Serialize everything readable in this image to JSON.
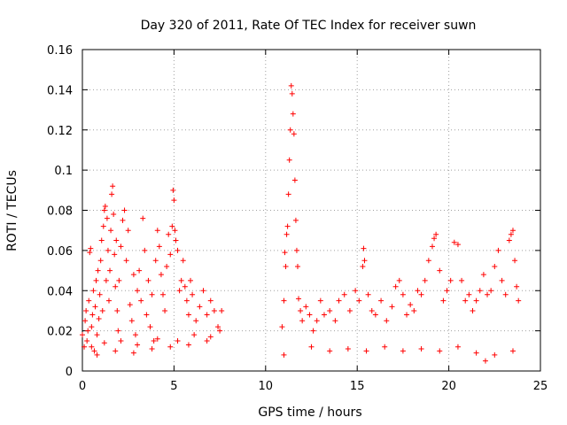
{
  "chart_data": {
    "type": "scatter",
    "title": "Day 320 of 2011, Rate Of TEC Index for receiver suwn",
    "xlabel": "GPS time / hours",
    "ylabel": "ROTI / TECUs",
    "xlim": [
      0,
      25
    ],
    "ylim": [
      0,
      0.16
    ],
    "xticks": [
      "0",
      "5",
      "10",
      "15",
      "20",
      "25"
    ],
    "yticks": [
      "0",
      "0.02",
      "0.04",
      "0.06",
      "0.08",
      "0.1",
      "0.12",
      "0.14",
      "0.16"
    ],
    "grid": true,
    "marker": "+",
    "color": "#ff0000",
    "series": [
      {
        "points": [
          [
            0.0,
            0.018
          ],
          [
            0.1,
            0.012
          ],
          [
            0.15,
            0.025
          ],
          [
            0.2,
            0.03
          ],
          [
            0.25,
            0.015
          ],
          [
            0.3,
            0.02
          ],
          [
            0.35,
            0.035
          ],
          [
            0.4,
            0.059
          ],
          [
            0.45,
            0.061
          ],
          [
            0.5,
            0.022
          ],
          [
            0.55,
            0.028
          ],
          [
            0.6,
            0.04
          ],
          [
            0.65,
            0.01
          ],
          [
            0.7,
            0.032
          ],
          [
            0.75,
            0.045
          ],
          [
            0.8,
            0.018
          ],
          [
            0.85,
            0.05
          ],
          [
            0.9,
            0.026
          ],
          [
            0.95,
            0.038
          ],
          [
            1.0,
            0.055
          ],
          [
            1.05,
            0.065
          ],
          [
            1.1,
            0.03
          ],
          [
            1.15,
            0.072
          ],
          [
            1.2,
            0.08
          ],
          [
            1.25,
            0.082
          ],
          [
            1.3,
            0.045
          ],
          [
            1.35,
            0.076
          ],
          [
            1.4,
            0.06
          ],
          [
            1.45,
            0.035
          ],
          [
            1.5,
            0.05
          ],
          [
            1.55,
            0.07
          ],
          [
            1.6,
            0.088
          ],
          [
            1.65,
            0.092
          ],
          [
            1.7,
            0.078
          ],
          [
            1.75,
            0.058
          ],
          [
            1.8,
            0.042
          ],
          [
            1.85,
            0.065
          ],
          [
            1.9,
            0.03
          ],
          [
            1.95,
            0.02
          ],
          [
            2.0,
            0.045
          ],
          [
            2.1,
            0.062
          ],
          [
            2.2,
            0.075
          ],
          [
            2.3,
            0.08
          ],
          [
            2.4,
            0.055
          ],
          [
            2.5,
            0.07
          ],
          [
            2.6,
            0.033
          ],
          [
            2.7,
            0.025
          ],
          [
            2.8,
            0.048
          ],
          [
            2.9,
            0.018
          ],
          [
            3.0,
            0.04
          ],
          [
            3.1,
            0.05
          ],
          [
            3.2,
            0.035
          ],
          [
            3.3,
            0.076
          ],
          [
            3.4,
            0.06
          ],
          [
            3.5,
            0.028
          ],
          [
            3.6,
            0.045
          ],
          [
            3.7,
            0.022
          ],
          [
            3.8,
            0.038
          ],
          [
            3.9,
            0.015
          ],
          [
            4.0,
            0.055
          ],
          [
            4.1,
            0.07
          ],
          [
            4.2,
            0.062
          ],
          [
            4.3,
            0.048
          ],
          [
            4.4,
            0.038
          ],
          [
            4.5,
            0.03
          ],
          [
            4.6,
            0.052
          ],
          [
            4.7,
            0.068
          ],
          [
            4.8,
            0.058
          ],
          [
            4.9,
            0.072
          ],
          [
            4.95,
            0.09
          ],
          [
            5.0,
            0.085
          ],
          [
            5.05,
            0.07
          ],
          [
            5.1,
            0.065
          ],
          [
            5.2,
            0.06
          ],
          [
            5.3,
            0.04
          ],
          [
            5.4,
            0.045
          ],
          [
            5.5,
            0.055
          ],
          [
            5.6,
            0.042
          ],
          [
            5.7,
            0.035
          ],
          [
            5.8,
            0.028
          ],
          [
            5.9,
            0.045
          ],
          [
            6.0,
            0.038
          ],
          [
            6.2,
            0.025
          ],
          [
            6.4,
            0.032
          ],
          [
            6.6,
            0.04
          ],
          [
            6.8,
            0.028
          ],
          [
            7.0,
            0.035
          ],
          [
            7.2,
            0.03
          ],
          [
            7.4,
            0.022
          ],
          [
            7.6,
            0.03
          ],
          [
            10.9,
            0.022
          ],
          [
            11.0,
            0.035
          ],
          [
            11.05,
            0.059
          ],
          [
            11.1,
            0.052
          ],
          [
            11.15,
            0.068
          ],
          [
            11.2,
            0.072
          ],
          [
            11.25,
            0.088
          ],
          [
            11.3,
            0.105
          ],
          [
            11.35,
            0.12
          ],
          [
            11.4,
            0.142
          ],
          [
            11.45,
            0.138
          ],
          [
            11.5,
            0.128
          ],
          [
            11.55,
            0.118
          ],
          [
            11.6,
            0.095
          ],
          [
            11.65,
            0.075
          ],
          [
            11.7,
            0.06
          ],
          [
            11.75,
            0.052
          ],
          [
            11.8,
            0.036
          ],
          [
            11.9,
            0.03
          ],
          [
            12.0,
            0.025
          ],
          [
            12.2,
            0.032
          ],
          [
            12.4,
            0.028
          ],
          [
            12.6,
            0.02
          ],
          [
            12.8,
            0.025
          ],
          [
            13.0,
            0.035
          ],
          [
            13.2,
            0.028
          ],
          [
            13.5,
            0.03
          ],
          [
            13.8,
            0.025
          ],
          [
            14.0,
            0.035
          ],
          [
            14.3,
            0.038
          ],
          [
            14.6,
            0.03
          ],
          [
            14.9,
            0.04
          ],
          [
            15.1,
            0.035
          ],
          [
            15.3,
            0.052
          ],
          [
            15.35,
            0.061
          ],
          [
            15.4,
            0.055
          ],
          [
            15.6,
            0.038
          ],
          [
            15.8,
            0.03
          ],
          [
            16.0,
            0.028
          ],
          [
            16.3,
            0.035
          ],
          [
            16.6,
            0.025
          ],
          [
            16.9,
            0.032
          ],
          [
            17.1,
            0.042
          ],
          [
            17.3,
            0.045
          ],
          [
            17.5,
            0.038
          ],
          [
            17.7,
            0.028
          ],
          [
            17.9,
            0.033
          ],
          [
            18.1,
            0.03
          ],
          [
            18.3,
            0.04
          ],
          [
            18.5,
            0.038
          ],
          [
            18.7,
            0.045
          ],
          [
            18.9,
            0.055
          ],
          [
            19.1,
            0.062
          ],
          [
            19.2,
            0.066
          ],
          [
            19.3,
            0.068
          ],
          [
            19.5,
            0.05
          ],
          [
            19.7,
            0.035
          ],
          [
            19.9,
            0.04
          ],
          [
            20.1,
            0.045
          ],
          [
            20.3,
            0.064
          ],
          [
            20.5,
            0.063
          ],
          [
            20.7,
            0.045
          ],
          [
            20.9,
            0.035
          ],
          [
            21.1,
            0.038
          ],
          [
            21.3,
            0.03
          ],
          [
            21.5,
            0.035
          ],
          [
            21.7,
            0.04
          ],
          [
            21.9,
            0.048
          ],
          [
            22.1,
            0.038
          ],
          [
            22.3,
            0.04
          ],
          [
            22.5,
            0.052
          ],
          [
            22.7,
            0.06
          ],
          [
            22.9,
            0.045
          ],
          [
            23.1,
            0.038
          ],
          [
            23.3,
            0.065
          ],
          [
            23.4,
            0.068
          ],
          [
            23.5,
            0.07
          ],
          [
            23.6,
            0.055
          ],
          [
            23.7,
            0.042
          ],
          [
            23.8,
            0.035
          ],
          [
            0.5,
            0.012
          ],
          [
            1.2,
            0.014
          ],
          [
            2.1,
            0.015
          ],
          [
            3.0,
            0.013
          ],
          [
            4.1,
            0.016
          ],
          [
            5.2,
            0.015
          ],
          [
            6.1,
            0.018
          ],
          [
            7.0,
            0.017
          ],
          [
            11.0,
            0.008
          ],
          [
            12.5,
            0.012
          ],
          [
            13.5,
            0.01
          ],
          [
            14.5,
            0.011
          ],
          [
            15.5,
            0.01
          ],
          [
            16.5,
            0.012
          ],
          [
            17.5,
            0.01
          ],
          [
            18.5,
            0.011
          ],
          [
            19.5,
            0.01
          ],
          [
            20.5,
            0.012
          ],
          [
            21.5,
            0.009
          ],
          [
            22.5,
            0.008
          ],
          [
            23.5,
            0.01
          ],
          [
            0.8,
            0.008
          ],
          [
            1.8,
            0.01
          ],
          [
            2.8,
            0.009
          ],
          [
            3.8,
            0.011
          ],
          [
            4.8,
            0.012
          ],
          [
            5.8,
            0.013
          ],
          [
            6.8,
            0.015
          ],
          [
            7.5,
            0.02
          ],
          [
            22.0,
            0.005
          ]
        ]
      }
    ]
  }
}
